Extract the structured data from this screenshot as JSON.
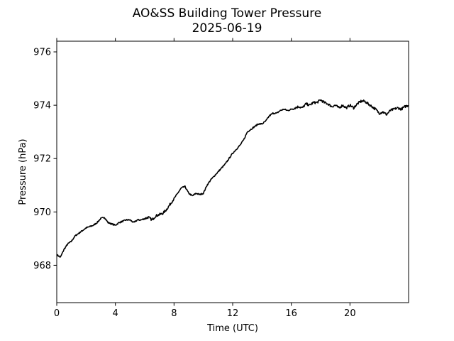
{
  "chart_data": {
    "type": "line",
    "title": "AO&SS Building Tower Pressure",
    "subtitle": "2025-06-19",
    "xlabel": "Time (UTC)",
    "ylabel": "Pressure (hPa)",
    "xlim": [
      0,
      24
    ],
    "ylim": [
      966.6,
      976.4
    ],
    "x_ticks": [
      0,
      4,
      8,
      12,
      16,
      20
    ],
    "y_ticks": [
      968,
      970,
      972,
      974,
      976
    ],
    "grid": false,
    "legend": "none",
    "colors": {
      "line": "#000000",
      "axes": "#000000",
      "background": "#ffffff"
    },
    "series": [
      {
        "x": [
          0.0,
          0.25,
          0.5,
          0.75,
          1.0,
          1.25,
          1.5,
          1.75,
          2.0,
          2.25,
          2.5,
          2.75,
          3.0,
          3.25,
          3.5,
          3.75,
          4.0,
          4.25,
          4.5,
          4.75,
          5.0,
          5.25,
          5.5,
          5.75,
          6.0,
          6.25,
          6.5,
          6.75,
          7.0,
          7.25,
          7.5,
          7.75,
          8.0,
          8.25,
          8.5,
          8.75,
          9.0,
          9.25,
          9.5,
          9.75,
          10.0,
          10.25,
          10.5,
          10.75,
          11.0,
          11.25,
          11.5,
          11.75,
          12.0,
          12.25,
          12.5,
          12.75,
          13.0,
          13.25,
          13.5,
          13.75,
          14.0,
          14.25,
          14.5,
          14.75,
          15.0,
          15.25,
          15.5,
          15.75,
          16.0,
          16.25,
          16.5,
          16.75,
          17.0,
          17.25,
          17.5,
          17.75,
          18.0,
          18.25,
          18.5,
          18.75,
          19.0,
          19.25,
          19.5,
          19.75,
          20.0,
          20.25,
          20.5,
          20.75,
          21.0,
          21.25,
          21.5,
          21.75,
          22.0,
          22.25,
          22.5,
          22.75,
          23.0,
          23.25,
          23.5,
          23.75,
          24.0
        ],
        "values": [
          968.4,
          968.3,
          968.6,
          968.8,
          968.9,
          969.1,
          969.2,
          969.3,
          969.4,
          969.45,
          969.5,
          969.6,
          969.75,
          969.8,
          969.6,
          969.55,
          969.5,
          969.6,
          969.65,
          969.7,
          969.7,
          969.6,
          969.7,
          969.7,
          969.75,
          969.8,
          969.7,
          969.85,
          969.9,
          969.95,
          970.1,
          970.3,
          970.5,
          970.7,
          970.9,
          970.95,
          970.7,
          970.6,
          970.7,
          970.65,
          970.7,
          971.0,
          971.2,
          971.35,
          971.5,
          971.65,
          971.8,
          972.0,
          972.2,
          972.35,
          972.5,
          972.7,
          973.0,
          973.1,
          973.2,
          973.3,
          973.3,
          973.4,
          973.6,
          973.7,
          973.7,
          973.8,
          973.85,
          973.8,
          973.85,
          973.9,
          973.95,
          973.9,
          974.05,
          974.0,
          974.1,
          974.1,
          974.2,
          974.1,
          974.05,
          973.95,
          974.0,
          973.9,
          974.0,
          973.9,
          974.0,
          973.9,
          974.05,
          974.15,
          974.15,
          974.05,
          973.95,
          973.85,
          973.7,
          973.75,
          973.65,
          973.8,
          973.85,
          973.9,
          973.85,
          973.95,
          974.0
        ]
      }
    ]
  }
}
